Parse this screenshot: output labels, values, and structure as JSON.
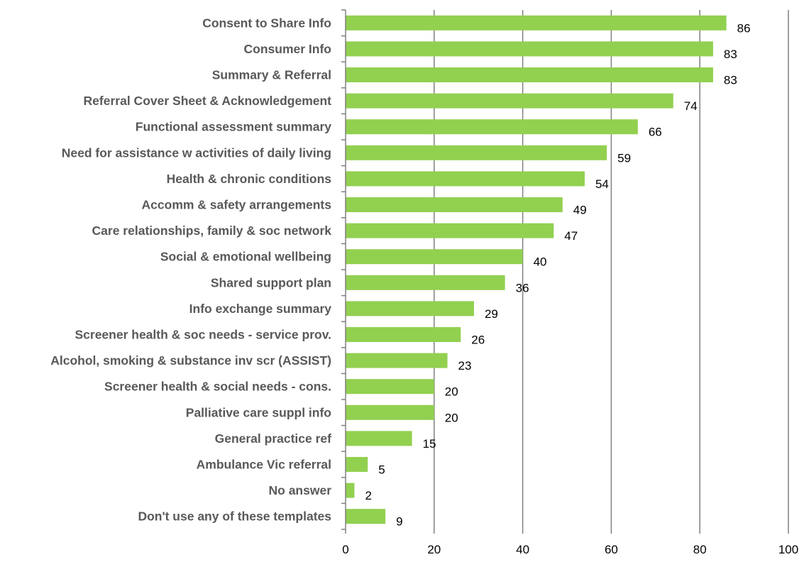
{
  "chart_data": {
    "type": "bar",
    "orientation": "horizontal",
    "title": "",
    "xlabel": "",
    "ylabel": "",
    "xlim": [
      0,
      100
    ],
    "x_ticks": [
      "0",
      "20",
      "40",
      "60",
      "80",
      "100"
    ],
    "grid": true,
    "legend": "none",
    "bar_color": "#92D050",
    "grid_color": "#808080",
    "categories": [
      "Consent to Share Info",
      "Consumer Info",
      "Summary & Referral",
      "Referral Cover Sheet & Acknowledgement",
      "Functional assessment summary",
      "Need for assistance w activities of daily living",
      "Health & chronic conditions",
      "Accomm & safety arrangements",
      "Care relationships, family & soc network",
      "Social & emotional wellbeing",
      "Shared support plan",
      "Info exchange summary",
      "Screener health & soc needs - service prov.",
      "Alcohol, smoking & substance inv scr (ASSIST)",
      "Screener health & social needs - cons.",
      "Palliative care suppl info",
      "General practice ref",
      "Ambulance Vic referral",
      "No answer",
      "Don't use any of these templates"
    ],
    "values": [
      86,
      83,
      83,
      74,
      66,
      59,
      54,
      49,
      47,
      40,
      36,
      29,
      26,
      23,
      20,
      20,
      15,
      5,
      2,
      9
    ],
    "data_labels": [
      "86",
      "83",
      "83",
      "74",
      "66",
      "59",
      "54",
      "49",
      "47",
      "40",
      "36",
      "29",
      "26",
      "23",
      "20",
      "20",
      "15",
      "5",
      "2",
      "9"
    ]
  }
}
